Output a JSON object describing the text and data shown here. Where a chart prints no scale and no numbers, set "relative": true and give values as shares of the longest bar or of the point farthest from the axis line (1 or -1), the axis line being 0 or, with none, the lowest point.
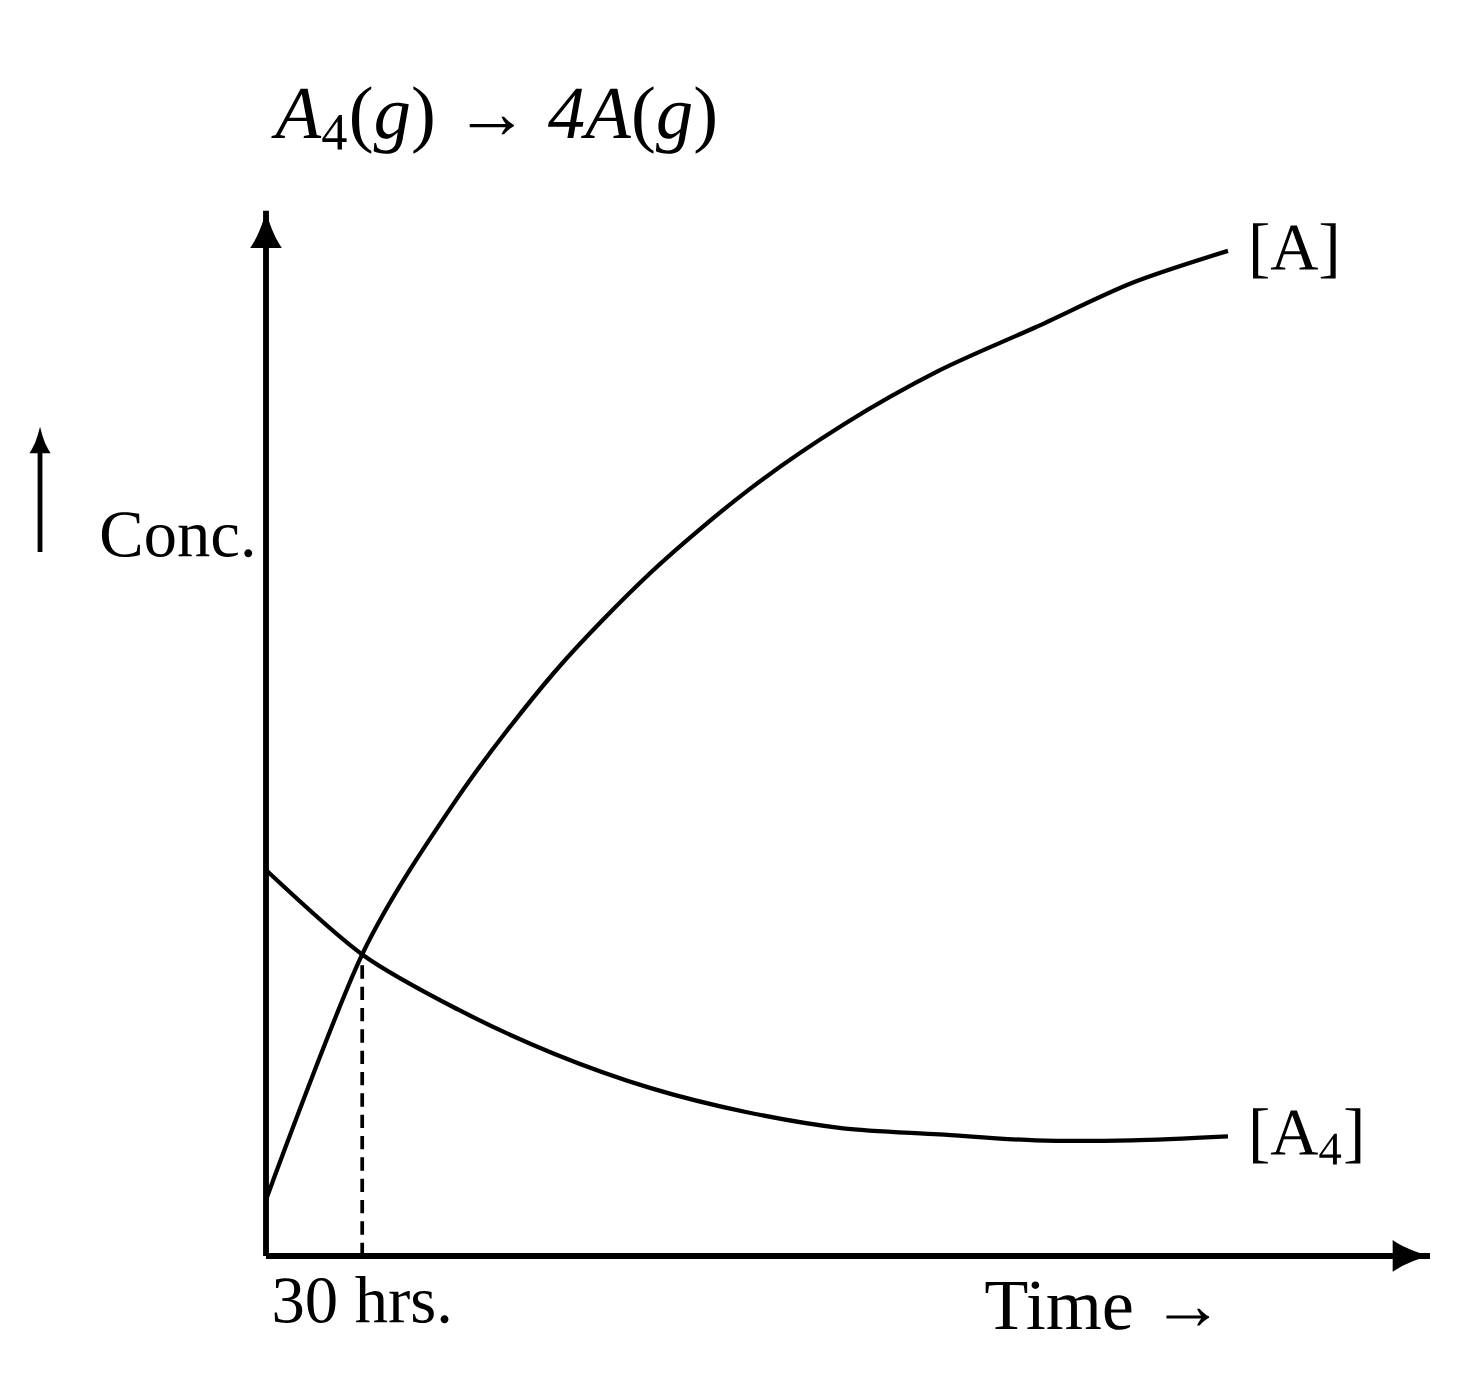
{
  "chart_data": {
    "type": "line",
    "title": "*A*$_{4}$(*g*) → *4A*(*g*)",
    "xlabel": "Time →",
    "ylabel": "Conc.",
    "relative": true,
    "categories": [
      null,
      null,
      null,
      null,
      null,
      null,
      null,
      null,
      null,
      null,
      null
    ],
    "marker": "none",
    "line_style": "solid",
    "annotations": [
      {
        "text": "30 hrs.",
        "y": 0.3
      }
    ],
    "series": [
      {
        "name": "[A]",
        "color": "#000000",
        "values": [
          0.056,
          0.3,
          0.457,
          0.581,
          0.68,
          0.761,
          0.827,
          0.881,
          0.924,
          0.968,
          1
        ]
      },
      {
        "name": "[A$_{4}$]",
        "color": "#000000",
        "values": [
          0.384,
          0.3,
          0.245,
          0.201,
          0.167,
          0.143,
          0.127,
          0.121,
          0.115,
          0.115,
          0.119
        ]
      }
    ]
  }
}
